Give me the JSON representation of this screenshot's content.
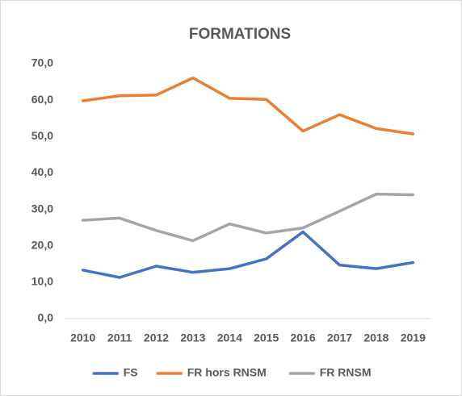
{
  "chart_data": {
    "type": "line",
    "title": "FORMATIONS",
    "categories": [
      "2010",
      "2011",
      "2012",
      "2013",
      "2014",
      "2015",
      "2016",
      "2017",
      "2018",
      "2019"
    ],
    "series": [
      {
        "name": "FS",
        "color": "#4472c4",
        "values": [
          13.3,
          11.3,
          14.4,
          12.7,
          13.7,
          16.4,
          23.8,
          14.7,
          13.7,
          15.4
        ]
      },
      {
        "name": "FR hors RNSM",
        "color": "#ed7d31",
        "values": [
          59.8,
          61.2,
          61.4,
          66.1,
          60.5,
          60.2,
          51.5,
          56.0,
          52.2,
          50.7
        ]
      },
      {
        "name": "FR RNSM",
        "color": "#a5a5a5",
        "values": [
          27.0,
          27.6,
          24.2,
          21.4,
          26.0,
          23.5,
          24.9,
          29.5,
          34.2,
          34.0
        ]
      }
    ],
    "ylim": [
      0,
      70
    ],
    "yticks": [
      {
        "value": 0,
        "label": "0,0"
      },
      {
        "value": 10,
        "label": "10,0"
      },
      {
        "value": 20,
        "label": "20,0"
      },
      {
        "value": 30,
        "label": "30,0"
      },
      {
        "value": 40,
        "label": "40,0"
      },
      {
        "value": 50,
        "label": "50,0"
      },
      {
        "value": 60,
        "label": "60,0"
      },
      {
        "value": 70,
        "label": "70,0"
      }
    ],
    "grid": false,
    "legend": "bottom"
  }
}
